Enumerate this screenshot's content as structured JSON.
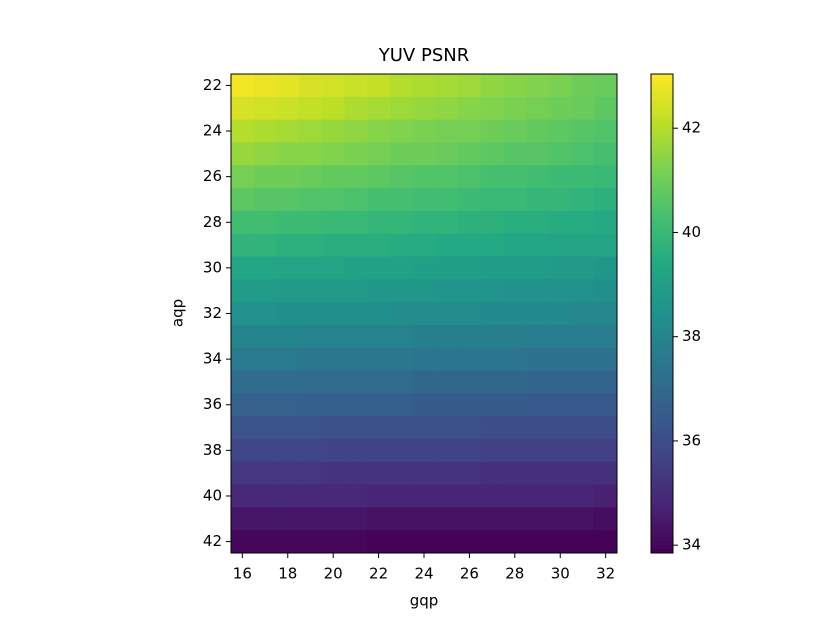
{
  "chart_data": {
    "type": "heatmap",
    "title": "YUV PSNR",
    "xlabel": "gqp",
    "ylabel": "aqp",
    "colormap": "viridis",
    "x": [
      16,
      17,
      18,
      19,
      20,
      21,
      22,
      23,
      24,
      25,
      26,
      27,
      28,
      29,
      30,
      31,
      32
    ],
    "y": [
      22,
      23,
      24,
      25,
      26,
      27,
      28,
      29,
      30,
      31,
      32,
      33,
      34,
      35,
      36,
      37,
      38,
      39,
      40,
      41,
      42
    ],
    "z": [
      [
        42.9,
        42.8,
        42.7,
        42.5,
        42.4,
        42.3,
        42.2,
        42.0,
        41.9,
        41.8,
        41.7,
        41.5,
        41.4,
        41.3,
        41.2,
        41.0,
        40.9
      ],
      [
        42.5,
        42.4,
        42.3,
        42.2,
        42.1,
        41.9,
        41.8,
        41.7,
        41.6,
        41.5,
        41.4,
        41.3,
        41.2,
        41.1,
        41.0,
        40.9,
        40.7
      ],
      [
        42.0,
        41.9,
        41.8,
        41.7,
        41.6,
        41.5,
        41.4,
        41.3,
        41.2,
        41.1,
        41.1,
        41.0,
        40.9,
        40.8,
        40.7,
        40.6,
        40.5
      ],
      [
        41.6,
        41.5,
        41.4,
        41.4,
        41.3,
        41.2,
        41.1,
        41.0,
        41.0,
        40.9,
        40.8,
        40.7,
        40.6,
        40.6,
        40.5,
        40.4,
        40.3
      ],
      [
        41.1,
        41.0,
        41.0,
        40.9,
        40.8,
        40.8,
        40.7,
        40.6,
        40.5,
        40.5,
        40.4,
        40.3,
        40.3,
        40.2,
        40.1,
        40.1,
        40.0
      ],
      [
        40.7,
        40.6,
        40.6,
        40.5,
        40.5,
        40.4,
        40.3,
        40.3,
        40.2,
        40.2,
        40.1,
        40.0,
        40.0,
        39.9,
        39.9,
        39.8,
        39.7
      ],
      [
        40.2,
        40.2,
        40.1,
        40.1,
        40.0,
        40.0,
        39.9,
        39.9,
        39.8,
        39.8,
        39.7,
        39.7,
        39.6,
        39.6,
        39.5,
        39.5,
        39.4
      ],
      [
        39.8,
        39.8,
        39.7,
        39.7,
        39.6,
        39.6,
        39.6,
        39.5,
        39.5,
        39.4,
        39.4,
        39.4,
        39.3,
        39.3,
        39.2,
        39.2,
        39.2
      ],
      [
        39.3,
        39.3,
        39.2,
        39.2,
        39.2,
        39.1,
        39.1,
        39.1,
        39.0,
        39.0,
        39.0,
        38.9,
        38.9,
        38.9,
        38.8,
        38.8,
        38.7
      ],
      [
        38.9,
        38.9,
        38.8,
        38.8,
        38.8,
        38.8,
        38.7,
        38.7,
        38.7,
        38.6,
        38.6,
        38.6,
        38.5,
        38.5,
        38.5,
        38.5,
        38.4
      ],
      [
        38.5,
        38.5,
        38.4,
        38.4,
        38.4,
        38.4,
        38.4,
        38.3,
        38.3,
        38.3,
        38.3,
        38.2,
        38.2,
        38.2,
        38.2,
        38.1,
        38.1
      ],
      [
        38.0,
        38.0,
        38.0,
        37.9,
        37.9,
        37.9,
        37.9,
        37.9,
        37.8,
        37.8,
        37.8,
        37.8,
        37.8,
        37.7,
        37.7,
        37.7,
        37.7
      ],
      [
        37.6,
        37.6,
        37.6,
        37.5,
        37.5,
        37.5,
        37.5,
        37.5,
        37.4,
        37.4,
        37.4,
        37.4,
        37.4,
        37.3,
        37.3,
        37.3,
        37.3
      ],
      [
        37.1,
        37.1,
        37.1,
        37.0,
        37.0,
        37.0,
        37.0,
        37.0,
        36.9,
        36.9,
        36.9,
        36.9,
        36.9,
        36.8,
        36.8,
        36.8,
        36.8
      ],
      [
        36.7,
        36.7,
        36.7,
        36.6,
        36.6,
        36.6,
        36.6,
        36.6,
        36.5,
        36.5,
        36.5,
        36.5,
        36.5,
        36.4,
        36.4,
        36.4,
        36.4
      ],
      [
        36.2,
        36.2,
        36.2,
        36.2,
        36.1,
        36.1,
        36.1,
        36.1,
        36.1,
        36.1,
        36.1,
        36.0,
        36.0,
        36.0,
        36.0,
        36.0,
        36.0
      ],
      [
        35.8,
        35.8,
        35.8,
        35.8,
        35.7,
        35.7,
        35.7,
        35.7,
        35.7,
        35.7,
        35.7,
        35.6,
        35.6,
        35.6,
        35.6,
        35.6,
        35.6
      ],
      [
        35.3,
        35.3,
        35.3,
        35.3,
        35.2,
        35.2,
        35.2,
        35.2,
        35.2,
        35.2,
        35.2,
        35.1,
        35.1,
        35.1,
        35.1,
        35.1,
        35.1
      ],
      [
        34.9,
        34.9,
        34.9,
        34.9,
        34.9,
        34.9,
        34.8,
        34.8,
        34.8,
        34.8,
        34.8,
        34.8,
        34.8,
        34.8,
        34.8,
        34.8,
        34.7
      ],
      [
        34.4,
        34.4,
        34.4,
        34.4,
        34.4,
        34.4,
        34.3,
        34.3,
        34.3,
        34.3,
        34.3,
        34.3,
        34.3,
        34.3,
        34.3,
        34.3,
        34.2
      ],
      [
        34.0,
        34.0,
        34.0,
        34.0,
        34.0,
        34.0,
        33.9,
        33.9,
        33.9,
        33.9,
        33.9,
        33.9,
        33.9,
        33.9,
        33.9,
        33.9,
        33.9
      ]
    ],
    "xlim": [
      15.5,
      32.5
    ],
    "xticks": [
      16,
      18,
      20,
      22,
      24,
      26,
      28,
      30,
      32
    ],
    "ylim": [
      21.5,
      42.5
    ],
    "yticks": [
      22,
      24,
      26,
      28,
      30,
      32,
      34,
      36,
      38,
      40,
      42
    ],
    "clim": [
      33.85,
      43.04
    ],
    "cticks": [
      34,
      36,
      38,
      40,
      42
    ]
  }
}
